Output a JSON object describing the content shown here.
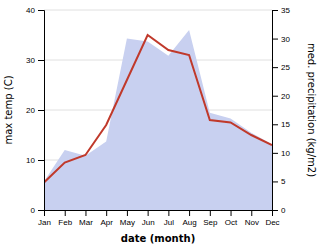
{
  "chart_data": {
    "type": "line",
    "xlabel": "date (month)",
    "ylabel": "max temp (C)",
    "y2label": "med. precipitation (kg/m2)",
    "categories": [
      "Jan",
      "Feb",
      "Mar",
      "Apr",
      "May",
      "Jun",
      "Jul",
      "Aug",
      "Sep",
      "Oct",
      "Nov",
      "Dec"
    ],
    "series": [
      {
        "type": "area",
        "axis": "y2",
        "color": "#c8d0f0",
        "values": [
          5.0,
          10.5,
          9.5,
          12.0,
          30.0,
          29.5,
          27.0,
          31.5,
          17.0,
          16.0,
          13.5,
          11.5
        ]
      },
      {
        "type": "line",
        "color": "#c0392b",
        "values": [
          5.5,
          9.5,
          11.0,
          17.0,
          26.0,
          35.0,
          32.0,
          31.0,
          18.0,
          17.5,
          15.0,
          13.0
        ]
      }
    ],
    "ylim": [
      0,
      40
    ],
    "yticks": [
      0,
      10,
      20,
      30,
      40
    ],
    "y2lim": [
      0,
      35
    ],
    "y2ticks": [
      0,
      5,
      10,
      15,
      20,
      25,
      30,
      35
    ],
    "grid": true
  }
}
